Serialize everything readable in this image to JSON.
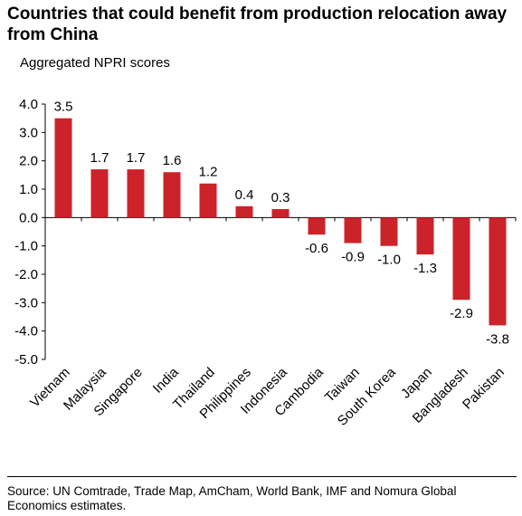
{
  "chart_data": {
    "type": "bar",
    "title": "Countries that could benefit from production relocation away from China",
    "subtitle": "Aggregated NPRI scores",
    "categories": [
      "Vietnam",
      "Malaysia",
      "Singapore",
      "India",
      "Thailand",
      "Philippines",
      "Indonesia",
      "Cambodia",
      "Taiwan",
      "South Korea",
      "Japan",
      "Bangladesh",
      "Pakistan"
    ],
    "values": [
      3.5,
      1.7,
      1.7,
      1.6,
      1.2,
      0.4,
      0.3,
      -0.6,
      -0.9,
      -1.0,
      -1.3,
      -2.9,
      -3.8
    ],
    "data_labels": [
      "3.5",
      "1.7",
      "1.7",
      "1.6",
      "1.2",
      "0.4",
      "0.3",
      "-0.6",
      "-0.9",
      "-1.0",
      "-1.3",
      "-2.9",
      "-3.8"
    ],
    "ylim": [
      -5,
      4
    ],
    "yticks": [
      "4.0",
      "3.0",
      "2.0",
      "1.0",
      "0.0",
      "-1.0",
      "-2.0",
      "-3.0",
      "-4.0",
      "-5.0"
    ],
    "ytick_values": [
      4,
      3,
      2,
      1,
      0,
      -1,
      -2,
      -3,
      -4,
      -5
    ],
    "grid": false,
    "legend": "none",
    "bar_color": "#cc2229"
  },
  "source": "Source: UN Comtrade, Trade Map, AmCham, World Bank, IMF and Nomura Global Economics estimates."
}
